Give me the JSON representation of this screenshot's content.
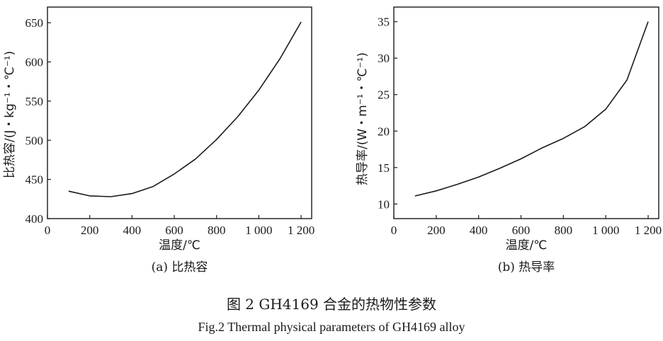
{
  "figure": {
    "caption_cn": "图 2  GH4169 合金的热物性参数",
    "caption_en": "Fig.2  Thermal physical parameters of GH4169 alloy"
  },
  "chart_data": [
    {
      "type": "line",
      "subtitle": "(a) 比热容",
      "xlabel": "温度/℃",
      "ylabel": "比热容/(J・kg⁻¹・℃⁻¹)",
      "xlim": [
        0,
        1250
      ],
      "ylim": [
        400,
        670
      ],
      "xticks": [
        0,
        200,
        400,
        600,
        800,
        1000,
        1200
      ],
      "xtick_labels": [
        "0",
        "200",
        "400",
        "600",
        "800",
        "1 000",
        "1 200"
      ],
      "yticks": [
        400,
        450,
        500,
        550,
        600,
        650
      ],
      "ytick_labels": [
        "400",
        "450",
        "500",
        "550",
        "600",
        "650"
      ],
      "grid": false,
      "series": [
        {
          "x": [
            100,
            200,
            300,
            400,
            500,
            600,
            700,
            800,
            900,
            1000,
            1100,
            1200
          ],
          "values": [
            435,
            429,
            428,
            432,
            441,
            457,
            476,
            501,
            530,
            564,
            604,
            651
          ]
        }
      ]
    },
    {
      "type": "line",
      "subtitle": "(b) 热导率",
      "xlabel": "温度/℃",
      "ylabel": "热导率/(W・m⁻¹・℃⁻¹)",
      "xlim": [
        0,
        1250
      ],
      "ylim": [
        8,
        37
      ],
      "xticks": [
        0,
        200,
        400,
        600,
        800,
        1000,
        1200
      ],
      "xtick_labels": [
        "0",
        "200",
        "400",
        "600",
        "800",
        "1 000",
        "1 200"
      ],
      "yticks": [
        10,
        15,
        20,
        25,
        30,
        35
      ],
      "ytick_labels": [
        "10",
        "15",
        "20",
        "25",
        "30",
        "35"
      ],
      "grid": false,
      "series": [
        {
          "x": [
            100,
            200,
            300,
            400,
            500,
            600,
            700,
            800,
            900,
            1000,
            1100,
            1200
          ],
          "values": [
            11.1,
            11.8,
            12.7,
            13.7,
            14.9,
            16.2,
            17.7,
            19.0,
            20.6,
            23.0,
            27.0,
            35.0
          ]
        }
      ]
    }
  ]
}
